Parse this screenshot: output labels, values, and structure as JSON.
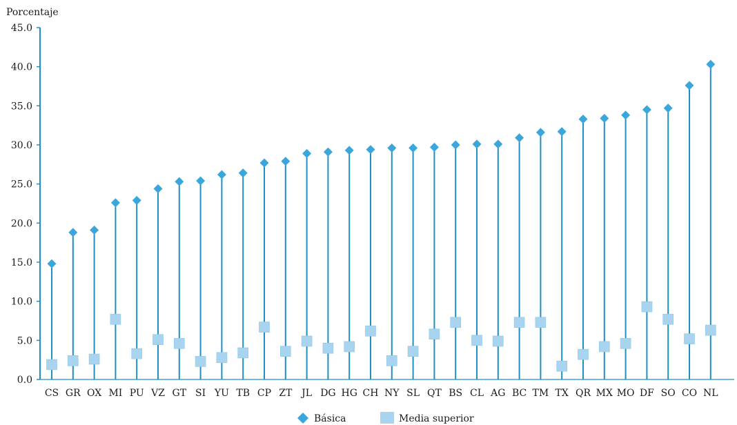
{
  "chart_data": {
    "type": "dot-range",
    "ylabel": "Porcentaje",
    "ylim": [
      0,
      45
    ],
    "yticks": [
      "0.0",
      "5.0",
      "10.0",
      "15.0",
      "20.0",
      "25.0",
      "30.0",
      "35.0",
      "40.0",
      "45.0"
    ],
    "categories": [
      "CS",
      "GR",
      "OX",
      "MI",
      "PU",
      "VZ",
      "GT",
      "SI",
      "YU",
      "TB",
      "CP",
      "ZT",
      "JL",
      "DG",
      "HG",
      "CH",
      "NY",
      "SL",
      "QT",
      "BS",
      "CL",
      "AG",
      "BC",
      "TM",
      "TX",
      "QR",
      "MX",
      "MO",
      "DF",
      "SO",
      "CO",
      "NL"
    ],
    "series": [
      {
        "name": "Básica",
        "marker": "diamond",
        "color": "#3aa6dc",
        "values": [
          14.8,
          18.8,
          19.1,
          22.6,
          22.9,
          24.4,
          25.3,
          25.4,
          26.2,
          26.4,
          27.7,
          27.9,
          28.9,
          29.1,
          29.3,
          29.4,
          29.6,
          29.6,
          29.7,
          30.0,
          30.1,
          30.1,
          30.9,
          31.6,
          31.7,
          33.3,
          33.4,
          33.8,
          34.5,
          34.7,
          37.6,
          40.3
        ]
      },
      {
        "name": "Media superior",
        "marker": "square",
        "color": "#a8d4ef",
        "values": [
          1.9,
          2.4,
          2.6,
          7.7,
          3.3,
          5.1,
          4.6,
          2.3,
          2.8,
          3.4,
          6.7,
          3.6,
          4.9,
          4.0,
          4.2,
          6.2,
          2.4,
          3.6,
          5.8,
          7.3,
          5.0,
          4.9,
          7.3,
          7.3,
          1.7,
          3.2,
          4.2,
          4.6,
          9.3,
          7.7,
          5.2,
          6.3
        ]
      }
    ],
    "legend_position": "bottom-center",
    "grid": false,
    "line_color": "#1e8fc5",
    "axis_color": "#1e8fc5"
  }
}
